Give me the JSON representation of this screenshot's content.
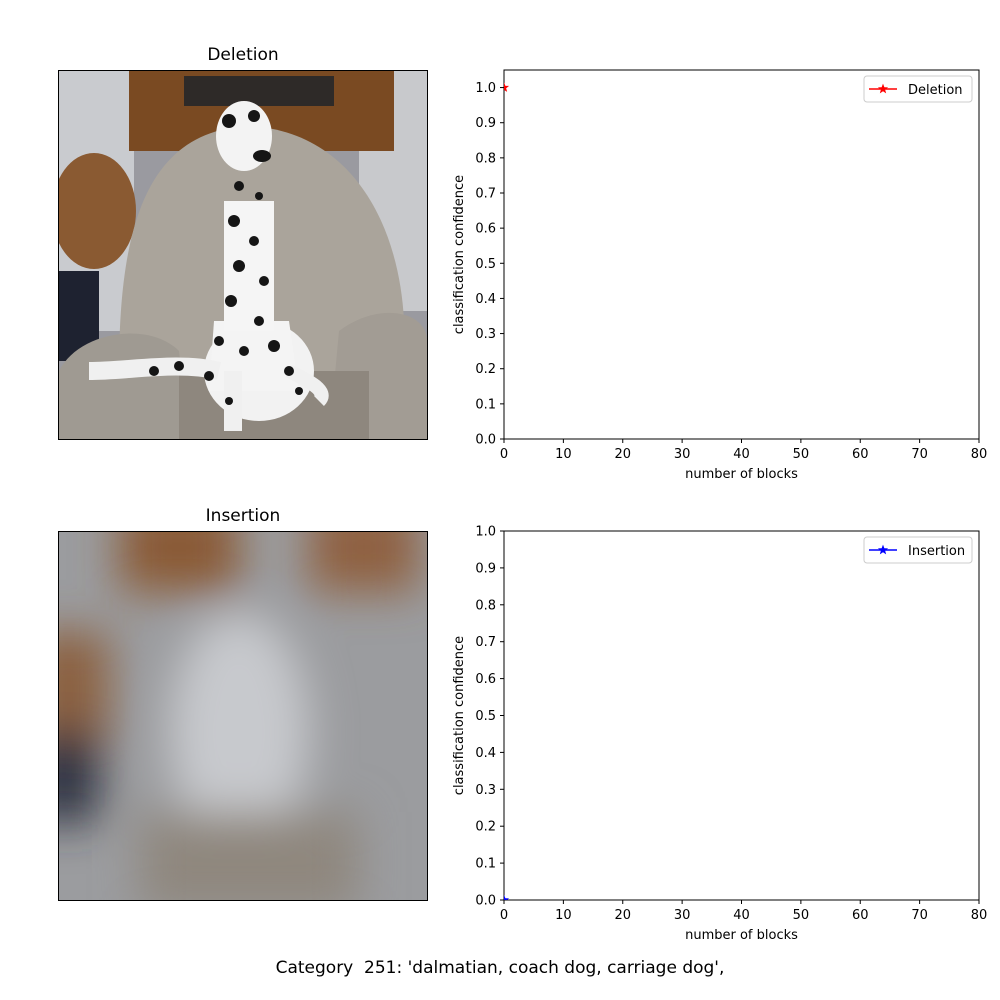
{
  "caption": "Category  251: 'dalmatian, coach dog, carriage dog',",
  "panels": {
    "deletion_title": "Deletion",
    "insertion_title": "Insertion"
  },
  "chart_data": [
    {
      "type": "line",
      "title": "",
      "xlabel": "number of blocks",
      "ylabel": "classification confidence",
      "xlim": [
        0,
        80
      ],
      "ylim": [
        0,
        1.05
      ],
      "xticks": [
        0,
        10,
        20,
        30,
        40,
        50,
        60,
        70,
        80
      ],
      "yticks": [
        0.0,
        0.1,
        0.2,
        0.3,
        0.4,
        0.5,
        0.6,
        0.7,
        0.8,
        0.9,
        1.0
      ],
      "legend_position": "top-right",
      "grid": false,
      "series": [
        {
          "name": "Deletion",
          "color": "#ff0000",
          "marker": "star",
          "x": [
            0
          ],
          "y": [
            1.0
          ]
        }
      ]
    },
    {
      "type": "line",
      "title": "",
      "xlabel": "number of blocks",
      "ylabel": "classification confidence",
      "xlim": [
        0,
        80
      ],
      "ylim": [
        0,
        1.0
      ],
      "xticks": [
        0,
        10,
        20,
        30,
        40,
        50,
        60,
        70,
        80
      ],
      "yticks": [
        0.0,
        0.1,
        0.2,
        0.3,
        0.4,
        0.5,
        0.6,
        0.7,
        0.8,
        0.9,
        1.0
      ],
      "legend_position": "top-right",
      "grid": false,
      "series": [
        {
          "name": "Insertion",
          "color": "#0000ff",
          "marker": "star",
          "x": [
            0
          ],
          "y": [
            0.0
          ]
        }
      ]
    }
  ]
}
